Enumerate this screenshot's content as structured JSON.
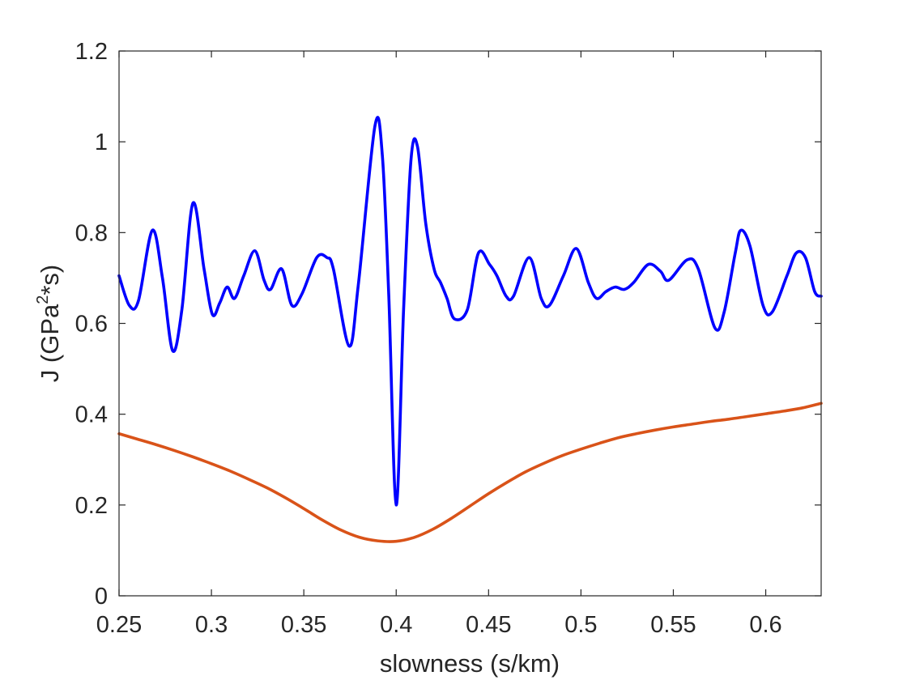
{
  "chart_data": {
    "type": "line",
    "xlabel": "slowness (s/km)",
    "ylabel": {
      "base": "J (GPa",
      "superscript": "2",
      "rest": "*s)"
    },
    "xlim": [
      0.25,
      0.63
    ],
    "ylim": [
      0,
      1.2
    ],
    "xticks": [
      0.25,
      0.3,
      0.35,
      0.4,
      0.45,
      0.5,
      0.55,
      0.6
    ],
    "xtick_labels": [
      "0.25",
      "0.3",
      "0.35",
      "0.4",
      "0.45",
      "0.5",
      "0.55",
      "0.6"
    ],
    "yticks": [
      0,
      0.2,
      0.4,
      0.6,
      0.8,
      1.0,
      1.2
    ],
    "ytick_labels": [
      "0",
      "0.2",
      "0.4",
      "0.6",
      "0.8",
      "1",
      "1.2"
    ],
    "grid": false,
    "series": [
      {
        "color": "#0000ff",
        "x": [
          0.25,
          0.2555,
          0.2605,
          0.268,
          0.2735,
          0.279,
          0.284,
          0.29,
          0.296,
          0.3005,
          0.3045,
          0.3085,
          0.3125,
          0.3175,
          0.3235,
          0.3285,
          0.332,
          0.338,
          0.3435,
          0.349,
          0.357,
          0.3625,
          0.366,
          0.3745,
          0.3795,
          0.3885,
          0.3925,
          0.396,
          0.4,
          0.404,
          0.408,
          0.4115,
          0.416,
          0.4205,
          0.424,
          0.4275,
          0.4315,
          0.4385,
          0.4445,
          0.4505,
          0.4545,
          0.4595,
          0.4635,
          0.472,
          0.4785,
          0.483,
          0.4905,
          0.4975,
          0.504,
          0.5085,
          0.5135,
          0.5185,
          0.5235,
          0.5285,
          0.5365,
          0.543,
          0.5475,
          0.5575,
          0.5635,
          0.5725,
          0.5775,
          0.5835,
          0.5865,
          0.5915,
          0.5985,
          0.6035,
          0.6115,
          0.6165,
          0.6215,
          0.6265,
          0.63
        ],
        "y": [
          0.705,
          0.64,
          0.65,
          0.805,
          0.7,
          0.54,
          0.63,
          0.865,
          0.72,
          0.62,
          0.645,
          0.68,
          0.655,
          0.705,
          0.76,
          0.695,
          0.675,
          0.72,
          0.64,
          0.665,
          0.745,
          0.745,
          0.72,
          0.55,
          0.685,
          1.035,
          0.97,
          0.66,
          0.2,
          0.63,
          0.96,
          0.99,
          0.82,
          0.72,
          0.69,
          0.655,
          0.61,
          0.63,
          0.755,
          0.73,
          0.705,
          0.66,
          0.66,
          0.745,
          0.655,
          0.64,
          0.705,
          0.765,
          0.69,
          0.655,
          0.67,
          0.68,
          0.675,
          0.69,
          0.73,
          0.715,
          0.695,
          0.74,
          0.72,
          0.59,
          0.625,
          0.755,
          0.805,
          0.77,
          0.64,
          0.625,
          0.705,
          0.755,
          0.745,
          0.67,
          0.66
        ]
      },
      {
        "color": "#d95319",
        "x": [
          0.25,
          0.26,
          0.27,
          0.28,
          0.29,
          0.3,
          0.31,
          0.32,
          0.33,
          0.34,
          0.35,
          0.36,
          0.37,
          0.38,
          0.39,
          0.4,
          0.41,
          0.42,
          0.43,
          0.44,
          0.45,
          0.46,
          0.47,
          0.48,
          0.49,
          0.5,
          0.51,
          0.52,
          0.53,
          0.54,
          0.55,
          0.56,
          0.57,
          0.58,
          0.59,
          0.6,
          0.61,
          0.62,
          0.63
        ],
        "y": [
          0.357,
          0.345,
          0.333,
          0.32,
          0.306,
          0.291,
          0.275,
          0.257,
          0.238,
          0.216,
          0.192,
          0.167,
          0.145,
          0.129,
          0.121,
          0.12,
          0.129,
          0.147,
          0.171,
          0.198,
          0.225,
          0.25,
          0.273,
          0.292,
          0.309,
          0.323,
          0.336,
          0.348,
          0.357,
          0.365,
          0.372,
          0.378,
          0.384,
          0.389,
          0.395,
          0.401,
          0.407,
          0.414,
          0.424
        ]
      }
    ]
  }
}
